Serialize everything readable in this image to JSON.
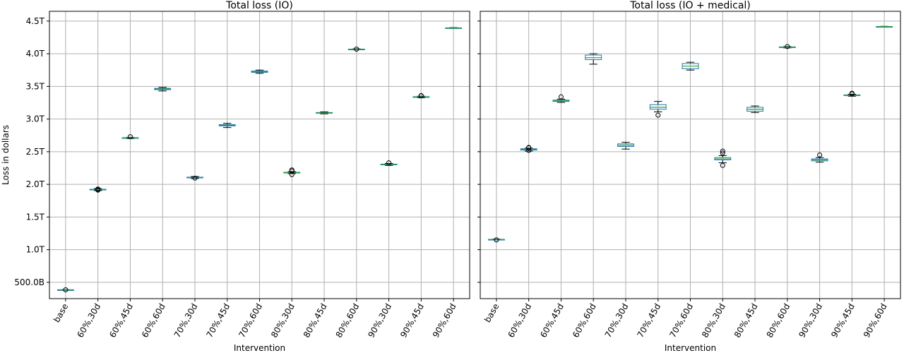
{
  "chart_data": [
    {
      "type": "box",
      "title": "Total loss (IO)",
      "xlabel": "Intervention",
      "ylabel": "Loss in dollars",
      "categories": [
        "base",
        "60%,30d",
        "60%,45d",
        "60%,60d",
        "70%,30d",
        "70%,45d",
        "70%,60d",
        "80%,30d",
        "80%,45d",
        "80%,60d",
        "90%,30d",
        "90%,45d",
        "90%,60d"
      ],
      "y_ticks": [
        500000000000,
        1000000000000,
        1500000000000,
        2000000000000,
        2500000000000,
        3000000000000,
        3500000000000,
        4000000000000,
        4500000000000
      ],
      "y_tick_labels": [
        "500.0B",
        "1.0T",
        "1.5T",
        "2.0T",
        "2.5T",
        "3.0T",
        "3.5T",
        "4.0T",
        "4.5T"
      ],
      "ylim": [
        250000000000,
        4650000000000
      ],
      "grid": true,
      "boxes": [
        {
          "category": "base",
          "min": 382000000000.0,
          "q1": 384000000000.0,
          "median": 385000000000.0,
          "q3": 386000000000.0,
          "max": 388000000000.0,
          "outliers": [
            385000000000.0
          ]
        },
        {
          "category": "60%,30d",
          "min": 1905000000000.0,
          "q1": 1915000000000.0,
          "median": 1920000000000.0,
          "q3": 1925000000000.0,
          "max": 1935000000000.0,
          "outliers": [
            1912000000000.0,
            1918000000000.0,
            1928000000000.0
          ]
        },
        {
          "category": "60%,45d",
          "min": 2700000000000.0,
          "q1": 2705000000000.0,
          "median": 2710000000000.0,
          "q3": 2715000000000.0,
          "max": 2720000000000.0,
          "outliers": [
            2730000000000.0
          ]
        },
        {
          "category": "60%,60d",
          "min": 3430000000000.0,
          "q1": 3450000000000.0,
          "median": 3460000000000.0,
          "q3": 3470000000000.0,
          "max": 3485000000000.0,
          "outliers": []
        },
        {
          "category": "70%,30d",
          "min": 2090000000000.0,
          "q1": 2100000000000.0,
          "median": 2105000000000.0,
          "q3": 2110000000000.0,
          "max": 2120000000000.0,
          "outliers": [
            2095000000000.0
          ]
        },
        {
          "category": "70%,45d",
          "min": 2870000000000.0,
          "q1": 2895000000000.0,
          "median": 2905000000000.0,
          "q3": 2915000000000.0,
          "max": 2935000000000.0,
          "outliers": []
        },
        {
          "category": "70%,60d",
          "min": 3700000000000.0,
          "q1": 3715000000000.0,
          "median": 3725000000000.0,
          "q3": 3735000000000.0,
          "max": 3750000000000.0,
          "outliers": []
        },
        {
          "category": "80%,30d",
          "min": 2165000000000.0,
          "q1": 2175000000000.0,
          "median": 2180000000000.0,
          "q3": 2185000000000.0,
          "max": 2195000000000.0,
          "outliers": [
            2150000000000.0,
            2205000000000.0,
            2220000000000.0
          ]
        },
        {
          "category": "80%,45d",
          "min": 3080000000000.0,
          "q1": 3090000000000.0,
          "median": 3095000000000.0,
          "q3": 3100000000000.0,
          "max": 3110000000000.0,
          "outliers": []
        },
        {
          "category": "80%,60d",
          "min": 4060000000000.0,
          "q1": 4065000000000.0,
          "median": 4068000000000.0,
          "q3": 4071000000000.0,
          "max": 4076000000000.0,
          "outliers": [
            4070000000000.0
          ]
        },
        {
          "category": "90%,30d",
          "min": 2290000000000.0,
          "q1": 2300000000000.0,
          "median": 2305000000000.0,
          "q3": 2310000000000.0,
          "max": 2320000000000.0,
          "outliers": [
            2330000000000.0
          ]
        },
        {
          "category": "90%,45d",
          "min": 3325000000000.0,
          "q1": 3333000000000.0,
          "median": 3338000000000.0,
          "q3": 3343000000000.0,
          "max": 3350000000000.0,
          "outliers": [
            3355000000000.0,
            3360000000000.0
          ]
        },
        {
          "category": "90%,60d",
          "min": 4390000000000.0,
          "q1": 4393000000000.0,
          "median": 4395000000000.0,
          "q3": 4397000000000.0,
          "max": 4400000000000.0,
          "outliers": []
        }
      ]
    },
    {
      "type": "box",
      "title": "Total loss (IO + medical)",
      "xlabel": "Intervention",
      "ylabel": "",
      "categories": [
        "base",
        "60%,30d",
        "60%,45d",
        "60%,60d",
        "70%,30d",
        "70%,45d",
        "70%,60d",
        "80%,30d",
        "80%,45d",
        "80%,60d",
        "90%,30d",
        "90%,45d",
        "90%,60d"
      ],
      "y_tick_labels": [],
      "ylim": [
        250000000000,
        4650000000000
      ],
      "grid": true,
      "boxes": [
        {
          "category": "base",
          "min": 1148000000000.0,
          "q1": 1152000000000.0,
          "median": 1155000000000.0,
          "q3": 1158000000000.0,
          "max": 1162000000000.0,
          "outliers": [
            1150000000000.0
          ]
        },
        {
          "category": "60%,30d",
          "min": 2510000000000.0,
          "q1": 2525000000000.0,
          "median": 2535000000000.0,
          "q3": 2545000000000.0,
          "max": 2555000000000.0,
          "outliers": [
            2520000000000.0,
            2560000000000.0,
            2565000000000.0
          ]
        },
        {
          "category": "60%,45d",
          "min": 3255000000000.0,
          "q1": 3270000000000.0,
          "median": 3280000000000.0,
          "q3": 3290000000000.0,
          "max": 3305000000000.0,
          "outliers": [
            3340000000000.0
          ]
        },
        {
          "category": "60%,60d",
          "min": 3840000000000.0,
          "q1": 3910000000000.0,
          "median": 3940000000000.0,
          "q3": 3980000000000.0,
          "max": 4000000000000.0,
          "outliers": []
        },
        {
          "category": "70%,30d",
          "min": 2540000000000.0,
          "q1": 2580000000000.0,
          "median": 2600000000000.0,
          "q3": 2620000000000.0,
          "max": 2645000000000.0,
          "outliers": []
        },
        {
          "category": "70%,45d",
          "min": 3110000000000.0,
          "q1": 3150000000000.0,
          "median": 3180000000000.0,
          "q3": 3220000000000.0,
          "max": 3270000000000.0,
          "outliers": [
            3060000000000.0
          ]
        },
        {
          "category": "70%,60d",
          "min": 3750000000000.0,
          "q1": 3770000000000.0,
          "median": 3810000000000.0,
          "q3": 3850000000000.0,
          "max": 3870000000000.0,
          "outliers": []
        },
        {
          "category": "80%,30d",
          "min": 2330000000000.0,
          "q1": 2375000000000.0,
          "median": 2390000000000.0,
          "q3": 2410000000000.0,
          "max": 2440000000000.0,
          "outliers": [
            2290000000000.0,
            2480000000000.0,
            2510000000000.0
          ]
        },
        {
          "category": "80%,45d",
          "min": 3100000000000.0,
          "q1": 3120000000000.0,
          "median": 3150000000000.0,
          "q3": 3180000000000.0,
          "max": 3200000000000.0,
          "outliers": []
        },
        {
          "category": "80%,60d",
          "min": 4090000000000.0,
          "q1": 4095000000000.0,
          "median": 4100000000000.0,
          "q3": 4105000000000.0,
          "max": 4110000000000.0,
          "outliers": [
            4110000000000.0
          ]
        },
        {
          "category": "90%,30d",
          "min": 2340000000000.0,
          "q1": 2360000000000.0,
          "median": 2375000000000.0,
          "q3": 2390000000000.0,
          "max": 2410000000000.0,
          "outliers": [
            2450000000000.0
          ]
        },
        {
          "category": "90%,45d",
          "min": 3350000000000.0,
          "q1": 3360000000000.0,
          "median": 3365000000000.0,
          "q3": 3370000000000.0,
          "max": 3380000000000.0,
          "outliers": [
            3385000000000.0,
            3395000000000.0
          ]
        },
        {
          "category": "90%,60d",
          "min": 4410000000000.0,
          "q1": 4413000000000.0,
          "median": 4415000000000.0,
          "q3": 4417000000000.0,
          "max": 4420000000000.0,
          "outliers": []
        }
      ]
    }
  ],
  "colors": {
    "box": "#1f77b4",
    "median": "#2ca02c",
    "whisker": "#000000",
    "grid": "#b0b0b0",
    "outlier": "#000000"
  }
}
